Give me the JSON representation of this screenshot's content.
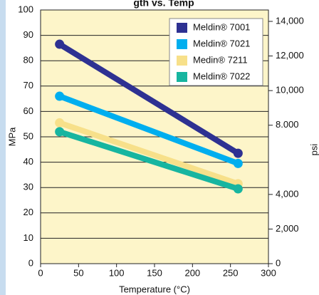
{
  "chart_data": {
    "type": "line",
    "title": "gth vs. Temp",
    "x_label": "Temperature (°C)",
    "y_label": "MPa",
    "y2_label": "psi",
    "x": [
      25,
      260
    ],
    "series": [
      {
        "name": "Meldin® 7001",
        "color": "#2e3192",
        "values": [
          86.5,
          43.5
        ]
      },
      {
        "name": "Meldin® 7021",
        "color": "#00aeef",
        "values": [
          66,
          39.5
        ]
      },
      {
        "name": "Medin® 7211",
        "color": "#f7e08a",
        "values": [
          55.5,
          31.5
        ]
      },
      {
        "name": "Meldin® 7022",
        "color": "#17b5a0",
        "values": [
          52,
          29.5
        ]
      }
    ],
    "xlim": [
      0,
      300
    ],
    "xticks": [
      0,
      50,
      100,
      150,
      200,
      250,
      300
    ],
    "ylim": [
      0,
      100
    ],
    "yticks": [
      0,
      10,
      20,
      30,
      40,
      50,
      60,
      70,
      80,
      90,
      100
    ],
    "y2lim": [
      0,
      14659
    ],
    "y2ticks": [
      0,
      {
        "value": 2000,
        "label": "2,000"
      },
      {
        "value": 4000,
        "label": "4,000"
      },
      {
        "value": 8000,
        "label": "8.000"
      },
      {
        "value": 10000,
        "label": "10,000"
      },
      {
        "value": 12000,
        "label": "12,000"
      },
      {
        "value": 14000,
        "label": "14,000"
      }
    ],
    "grid": true,
    "legend": "top-right"
  }
}
